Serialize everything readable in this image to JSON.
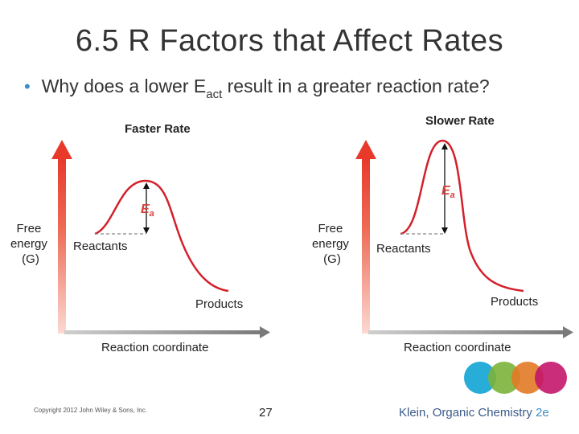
{
  "slide": {
    "title": "6.5 R Factors that Affect Rates",
    "bullet": {
      "text_before": "Why does a lower E",
      "subscript": "act",
      "text_after": " result in a greater reaction rate?"
    }
  },
  "diagrams": [
    {
      "heading": "Faster Rate",
      "y_label": [
        "Free",
        "energy",
        "(G)"
      ],
      "ea_label": "E",
      "ea_sub": "a",
      "reactants_label": "Reactants",
      "products_label": "Products",
      "x_label": "Reaction coordinate"
    },
    {
      "heading": "Slower Rate",
      "y_label": [
        "Free",
        "energy",
        "(G)"
      ],
      "ea_label": "E",
      "ea_sub": "a",
      "reactants_label": "Reactants",
      "products_label": "Products",
      "x_label": "Reaction coordinate"
    }
  ],
  "footer": {
    "copyright": "Copyright 2012 John Wiley & Sons, Inc.",
    "page_number": "27",
    "credit": "Klein, Organic Chemistry",
    "edition": "2e"
  },
  "colors": {
    "axis_red": "#e8392b",
    "axis_red_light": "#f7c0b6",
    "axis_gray": "#8a8a8a",
    "ea_red": "#d9403a",
    "circles": [
      "#1ba9d6",
      "#7cb23a",
      "#e27a26",
      "#c4166a"
    ]
  }
}
